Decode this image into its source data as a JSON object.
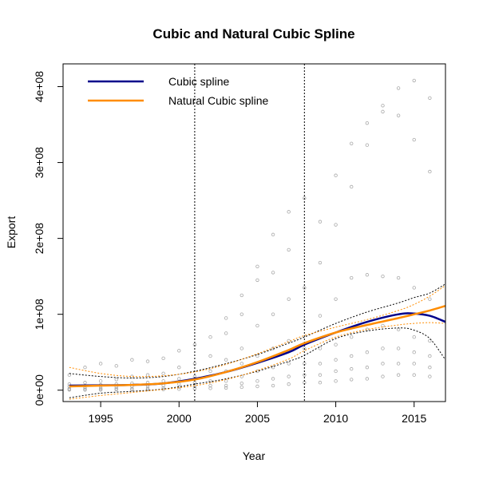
{
  "chart_data": {
    "type": "scatter",
    "title": "Cubic and Natural Cubic Spline",
    "xlabel": "Year",
    "ylabel": "Export",
    "xlim": [
      1992.6,
      2017
    ],
    "ylim": [
      -15000000,
      430000000
    ],
    "x_ticks": [
      1995,
      2000,
      2005,
      2010,
      2015
    ],
    "y_ticks": [
      {
        "value": 0,
        "label": "0e+00"
      },
      {
        "value": 100000000,
        "label": "1e+08"
      },
      {
        "value": 200000000,
        "label": "2e+08"
      },
      {
        "value": 300000000,
        "label": "3e+08"
      },
      {
        "value": 400000000,
        "label": "4e+08"
      }
    ],
    "knots": [
      2001,
      2008
    ],
    "legend": [
      {
        "label": "Cubic spline",
        "color": "#00008B"
      },
      {
        "label": "Natural Cubic spline",
        "color": "#FF8C00"
      }
    ],
    "series": [
      {
        "name": "Cubic spline",
        "color": "#00008B",
        "x": [
          1993,
          1995,
          1997,
          1999,
          2001,
          2003,
          2005,
          2007,
          2008,
          2010,
          2012,
          2014,
          2015,
          2016,
          2017
        ],
        "y": [
          6000000,
          6500000,
          7000000,
          9000000,
          15000000,
          24000000,
          36000000,
          50000000,
          60000000,
          76000000,
          90000000,
          100000000,
          101000000,
          98000000,
          90000000
        ],
        "lower": [
          -10000000,
          -4000000,
          -1500000,
          1500000,
          8000000,
          15000000,
          25000000,
          38000000,
          46000000,
          68000000,
          78000000,
          82000000,
          79000000,
          68000000,
          40000000
        ],
        "upper": [
          22000000,
          18000000,
          16000000,
          18000000,
          25000000,
          35000000,
          47000000,
          62000000,
          70000000,
          88000000,
          103000000,
          115000000,
          122000000,
          128000000,
          140000000
        ]
      },
      {
        "name": "Natural Cubic spline",
        "color": "#FF8C00",
        "x": [
          1993,
          1995,
          1997,
          1999,
          2001,
          2003,
          2005,
          2007,
          2008,
          2010,
          2012,
          2014,
          2015,
          2016,
          2017
        ],
        "y": [
          5000000,
          6000000,
          7000000,
          9000000,
          14000000,
          24000000,
          37000000,
          53000000,
          62000000,
          76000000,
          86000000,
          95000000,
          100000000,
          105000000,
          111000000
        ],
        "lower": [
          -12000000,
          -7000000,
          -3000000,
          1000000,
          6000000,
          14000000,
          26000000,
          41000000,
          52000000,
          70000000,
          80000000,
          86000000,
          88000000,
          89000000,
          88000000
        ],
        "upper": [
          30000000,
          22000000,
          18000000,
          19000000,
          24000000,
          34000000,
          48000000,
          64000000,
          72000000,
          83000000,
          93000000,
          105000000,
          113000000,
          124000000,
          138000000
        ]
      }
    ],
    "points": {
      "color": "#A9A9A9",
      "x": [
        1993,
        1993,
        1993,
        1993,
        1993,
        1993,
        1994,
        1994,
        1994,
        1994,
        1994,
        1994,
        1995,
        1995,
        1995,
        1995,
        1995,
        1995,
        1996,
        1996,
        1996,
        1996,
        1996,
        1996,
        1997,
        1997,
        1997,
        1997,
        1997,
        1997,
        1998,
        1998,
        1998,
        1998,
        1998,
        1998,
        1999,
        1999,
        1999,
        1999,
        1999,
        1999,
        2000,
        2000,
        2000,
        2000,
        2000,
        2000,
        2001,
        2001,
        2001,
        2001,
        2001,
        2001,
        2002,
        2002,
        2002,
        2002,
        2002,
        2002,
        2003,
        2003,
        2003,
        2003,
        2003,
        2003,
        2003,
        2004,
        2004,
        2004,
        2004,
        2004,
        2004,
        2004,
        2005,
        2005,
        2005,
        2005,
        2005,
        2005,
        2005,
        2006,
        2006,
        2006,
        2006,
        2006,
        2006,
        2006,
        2007,
        2007,
        2007,
        2007,
        2007,
        2007,
        2007,
        2008,
        2008,
        2008,
        2008,
        2008,
        2008,
        2008,
        2009,
        2009,
        2009,
        2009,
        2009,
        2009,
        2009,
        2010,
        2010,
        2010,
        2010,
        2010,
        2010,
        2010,
        2011,
        2011,
        2011,
        2011,
        2011,
        2011,
        2011,
        2012,
        2012,
        2012,
        2012,
        2012,
        2012,
        2012,
        2013,
        2013,
        2013,
        2013,
        2013,
        2013,
        2013,
        2014,
        2014,
        2014,
        2014,
        2014,
        2014,
        2014,
        2015,
        2015,
        2015,
        2015,
        2015,
        2015,
        2015,
        2016,
        2016,
        2016,
        2016,
        2016,
        2016,
        2016
      ],
      "y": [
        20000000,
        8000000,
        5000000,
        2000000,
        1000000,
        500000,
        30000000,
        10000000,
        6000000,
        3000000,
        1000000,
        500000,
        35000000,
        12000000,
        7000000,
        3000000,
        1500000,
        500000,
        32000000,
        14000000,
        8000000,
        4000000,
        2000000,
        800000,
        40000000,
        18000000,
        9000000,
        5000000,
        2000000,
        800000,
        38000000,
        20000000,
        10000000,
        5000000,
        2500000,
        1000000,
        42000000,
        22000000,
        12000000,
        6000000,
        3000000,
        1000000,
        52000000,
        30000000,
        15000000,
        8000000,
        4000000,
        1500000,
        60000000,
        35000000,
        18000000,
        10000000,
        5000000,
        2000000,
        70000000,
        45000000,
        25000000,
        12000000,
        6000000,
        2500000,
        95000000,
        75000000,
        40000000,
        25000000,
        12000000,
        6000000,
        3000000,
        125000000,
        100000000,
        55000000,
        35000000,
        18000000,
        9000000,
        4000000,
        163000000,
        145000000,
        85000000,
        45000000,
        25000000,
        12000000,
        5000000,
        205000000,
        155000000,
        100000000,
        55000000,
        30000000,
        15000000,
        6000000,
        235000000,
        185000000,
        120000000,
        65000000,
        35000000,
        18000000,
        8000000,
        253000000,
        135000000,
        90000000,
        55000000,
        35000000,
        20000000,
        10000000,
        222000000,
        168000000,
        98000000,
        55000000,
        35000000,
        20000000,
        10000000,
        283000000,
        218000000,
        120000000,
        60000000,
        40000000,
        25000000,
        12000000,
        325000000,
        268000000,
        148000000,
        70000000,
        45000000,
        28000000,
        14000000,
        352000000,
        323000000,
        152000000,
        80000000,
        50000000,
        30000000,
        15000000,
        375000000,
        367000000,
        150000000,
        85000000,
        55000000,
        35000000,
        18000000,
        398000000,
        362000000,
        148000000,
        80000000,
        55000000,
        35000000,
        20000000,
        408000000,
        330000000,
        135000000,
        70000000,
        50000000,
        35000000,
        20000000,
        385000000,
        288000000,
        120000000,
        65000000,
        45000000,
        30000000,
        18000000
      ]
    }
  }
}
